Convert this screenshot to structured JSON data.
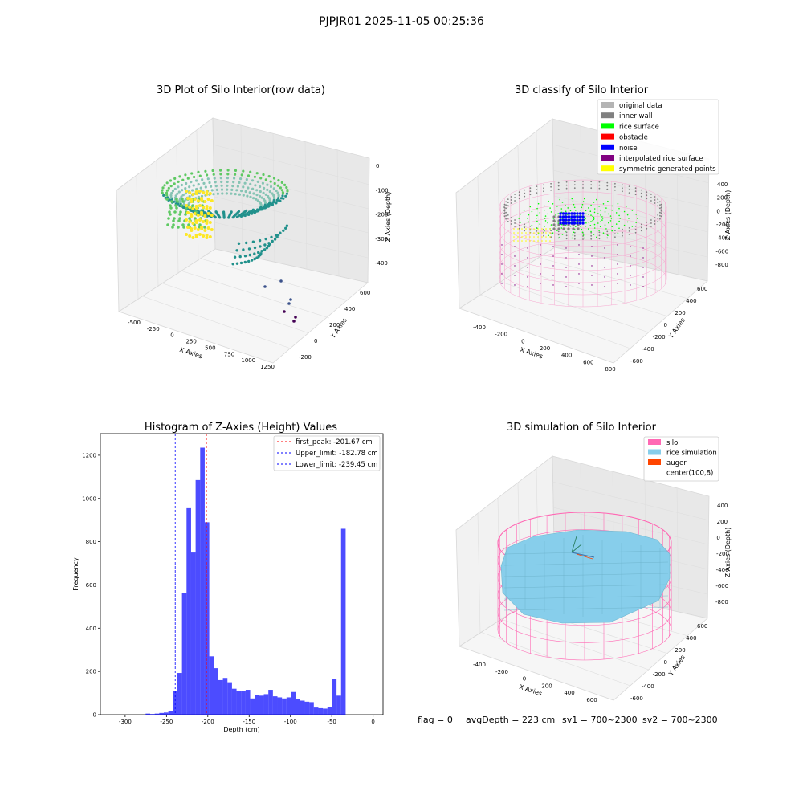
{
  "figure": {
    "suptitle": "PJPJR01 2025-11-05 00:25:36",
    "footer": {
      "flag": "flag = 0",
      "avg_depth": "avgDepth = 223 cm",
      "sv1": "sv1 = 700~2300",
      "sv2": "sv2 = 700~2300"
    }
  },
  "panels": {
    "raw": {
      "title": "3D Plot of Silo Interior(row data)",
      "xlabel": "X Axies",
      "ylabel": "Y Axies",
      "zlabel": "Z Axies (Depth)",
      "xticks": [
        "-500",
        "-250",
        "0",
        "250",
        "500",
        "750",
        "1000",
        "1250"
      ],
      "yticks": [
        "-200",
        "0",
        "200",
        "400",
        "600"
      ],
      "zticks": [
        "0",
        "-100",
        "-200",
        "-300",
        "-400"
      ],
      "colormap": [
        "#fde725",
        "#5ec962",
        "#21918c",
        "#3b528b",
        "#440154"
      ]
    },
    "classify": {
      "title": "3D classify of Silo Interior",
      "xlabel": "X Axies",
      "ylabel": "Y Axies",
      "zlabel": "Z Axies (Depth)",
      "xticks": [
        "-400",
        "-200",
        "0",
        "200",
        "400",
        "600",
        "800"
      ],
      "yticks": [
        "-600",
        "-400",
        "-200",
        "0",
        "200",
        "400",
        "600"
      ],
      "zticks": [
        "400",
        "200",
        "0",
        "-200",
        "-400",
        "-600",
        "-800"
      ],
      "legend": [
        {
          "label": "original data",
          "color": "#b4b4b4"
        },
        {
          "label": "inner wall",
          "color": "#808080"
        },
        {
          "label": "rice surface",
          "color": "#00ff00"
        },
        {
          "label": "obstacle",
          "color": "#ff0000"
        },
        {
          "label": "noise",
          "color": "#0000ff"
        },
        {
          "label": "interpolated rice surface",
          "color": "#800080"
        },
        {
          "label": "symmetric generated points",
          "color": "#ffff00"
        }
      ],
      "silo_color": "#f7a8d0"
    },
    "simulation": {
      "title": "3D simulation of Silo Interior",
      "xlabel": "X Axies",
      "ylabel": "Y Axies",
      "zlabel": "Z Axies (Depth)",
      "xticks": [
        "-400",
        "-200",
        "0",
        "200",
        "400",
        "600"
      ],
      "yticks": [
        "-600",
        "-400",
        "-200",
        "0",
        "200",
        "400",
        "600"
      ],
      "zticks": [
        "400",
        "200",
        "0",
        "-200",
        "-400",
        "-600",
        "-800"
      ],
      "legend": [
        {
          "label": "silo",
          "color": "#ff69b4"
        },
        {
          "label": "rice simulation",
          "color": "#87ceeb"
        },
        {
          "label": "auger",
          "color": "#ff4500"
        },
        {
          "label": "center(100,8)",
          "color": "#ffffff"
        }
      ]
    }
  },
  "chart_data": {
    "type": "bar",
    "title": "Histogram of Z-Axies (Height) Values",
    "xlabel": "Depth (cm)",
    "ylabel": "Frequency",
    "xlim": [
      -330,
      12
    ],
    "ylim": [
      0,
      1300
    ],
    "xticks": [
      -300,
      -250,
      -200,
      -150,
      -100,
      -50,
      0
    ],
    "yticks": [
      0,
      200,
      400,
      600,
      800,
      1000,
      1200
    ],
    "bar_color": "#0000ff",
    "bin_width": 5.5,
    "bins": [
      {
        "x": -272.5,
        "count": 5
      },
      {
        "x": -267,
        "count": 3
      },
      {
        "x": -261.5,
        "count": 5
      },
      {
        "x": -256,
        "count": 8
      },
      {
        "x": -250.5,
        "count": 10
      },
      {
        "x": -245,
        "count": 18
      },
      {
        "x": -239.5,
        "count": 108
      },
      {
        "x": -234,
        "count": 193
      },
      {
        "x": -228.5,
        "count": 563
      },
      {
        "x": -223,
        "count": 955
      },
      {
        "x": -217.5,
        "count": 750
      },
      {
        "x": -212,
        "count": 1085
      },
      {
        "x": -206.5,
        "count": 1235
      },
      {
        "x": -201,
        "count": 890
      },
      {
        "x": -195.5,
        "count": 270
      },
      {
        "x": -190,
        "count": 215
      },
      {
        "x": -184.5,
        "count": 160
      },
      {
        "x": -179,
        "count": 170
      },
      {
        "x": -173.5,
        "count": 150
      },
      {
        "x": -168,
        "count": 120
      },
      {
        "x": -162.5,
        "count": 110
      },
      {
        "x": -157,
        "count": 110
      },
      {
        "x": -151.5,
        "count": 115
      },
      {
        "x": -146,
        "count": 75
      },
      {
        "x": -140.5,
        "count": 90
      },
      {
        "x": -135,
        "count": 88
      },
      {
        "x": -129.5,
        "count": 95
      },
      {
        "x": -124,
        "count": 115
      },
      {
        "x": -118.5,
        "count": 85
      },
      {
        "x": -113,
        "count": 80
      },
      {
        "x": -107.5,
        "count": 75
      },
      {
        "x": -102,
        "count": 80
      },
      {
        "x": -96.5,
        "count": 105
      },
      {
        "x": -91,
        "count": 72
      },
      {
        "x": -85.5,
        "count": 65
      },
      {
        "x": -80,
        "count": 60
      },
      {
        "x": -74.5,
        "count": 58
      },
      {
        "x": -69,
        "count": 33
      },
      {
        "x": -63.5,
        "count": 30
      },
      {
        "x": -58,
        "count": 28
      },
      {
        "x": -52.5,
        "count": 35
      },
      {
        "x": -47,
        "count": 165
      },
      {
        "x": -41.5,
        "count": 88
      },
      {
        "x": -36,
        "count": 860
      }
    ],
    "vlines": [
      {
        "x": -201.67,
        "label": "first_peak: -201.67 cm",
        "color": "#ff0000"
      },
      {
        "x": -182.78,
        "label": "Upper_limit: -182.78 cm",
        "color": "#0000ff"
      },
      {
        "x": -239.45,
        "label": "Lower_limit: -239.45 cm",
        "color": "#0000ff"
      }
    ]
  }
}
